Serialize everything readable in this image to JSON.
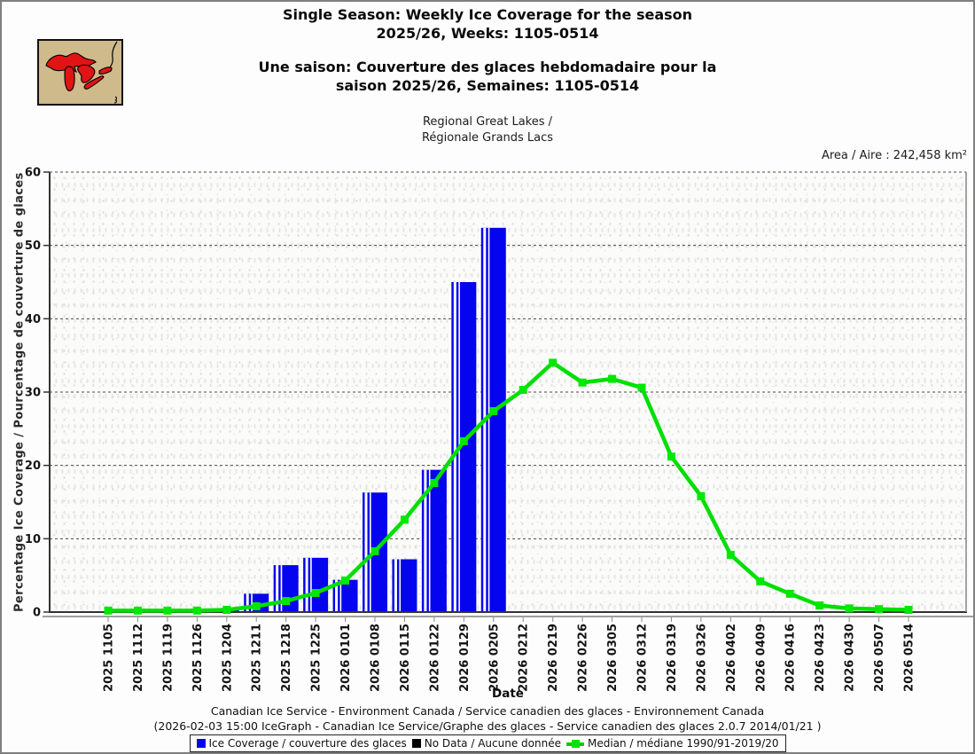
{
  "header": {
    "title_en_line1": "Single Season: Weekly Ice Coverage for the season",
    "title_en_line2": "2025/26, Weeks: 1105-0514",
    "title_fr_line1": "Une saison: Couverture des glaces hebdomadaire pour la",
    "title_fr_line2": "saison 2025/26, Semaines: 1105-0514",
    "region_en": "Regional Great Lakes /",
    "region_fr": "Régionale Grands Lacs",
    "area_label": "Area / Aire : 242,458 km²"
  },
  "icons": {
    "map": "great-lakes-map-icon",
    "ice_coverage_swatch": "blue-square-icon",
    "no_data_swatch": "black-square-icon",
    "median_swatch": "green-line-marker-icon"
  },
  "chart_data": {
    "type": "bar",
    "title": "",
    "xlabel": "Date",
    "ylabel": "Percentage Ice Coverage / Pourcentage de couverture de glaces",
    "ylim": [
      0,
      60
    ],
    "yticks": [
      0,
      10,
      20,
      30,
      40,
      50,
      60
    ],
    "grid": "horizontal-dashed",
    "legend_position": "bottom",
    "categories": [
      "2025 1105",
      "2025 1112",
      "2025 1119",
      "2025 1126",
      "2025 1204",
      "2025 1211",
      "2025 1218",
      "2025 1225",
      "2026 0101",
      "2026 0108",
      "2026 0115",
      "2026 0122",
      "2026 0129",
      "2026 0205",
      "2026 0212",
      "2026 0219",
      "2026 0226",
      "2026 0305",
      "2026 0312",
      "2026 0319",
      "2026 0326",
      "2026 0402",
      "2026 0409",
      "2026 0416",
      "2026 0423",
      "2026 0430",
      "2026 0507",
      "2026 0514"
    ],
    "series": [
      {
        "name": "Ice Coverage / couverture des glaces",
        "type": "bar",
        "color": "#0404ee",
        "values": [
          0,
          0,
          0,
          0,
          0.3,
          2.5,
          6.4,
          7.4,
          4.4,
          16.3,
          7.2,
          19.4,
          45.0,
          52.4,
          null,
          null,
          null,
          null,
          null,
          null,
          null,
          null,
          null,
          null,
          null,
          null,
          null,
          null
        ]
      },
      {
        "name": "Median / médiane 1990/91-2019/20",
        "type": "line",
        "color": "#00df00",
        "marker_color": "#00e800",
        "values": [
          0.2,
          0.2,
          0.2,
          0.2,
          0.3,
          0.8,
          1.5,
          2.6,
          4.3,
          8.3,
          12.6,
          17.6,
          23.3,
          27.4,
          30.3,
          34.0,
          31.3,
          31.8,
          30.6,
          21.2,
          15.8,
          7.8,
          4.2,
          2.5,
          0.9,
          0.5,
          0.4,
          0.3
        ]
      }
    ]
  },
  "footer": {
    "line1": "Canadian Ice Service - Environment Canada / Service canadien des glaces - Environnement Canada",
    "line2": "(2026-02-03 15:00 IceGraph - Canadian Ice Service/Graphe des glaces - Service canadien des glaces 2.0.7 2014/01/21 )"
  },
  "legend": {
    "items": [
      {
        "swatch": "blue-square",
        "color": "#0404ee",
        "label": "Ice Coverage / couverture des glaces"
      },
      {
        "swatch": "black-square",
        "color": "#000000",
        "label": "No Data / Aucune donnée"
      },
      {
        "swatch": "green-line-marker",
        "color": "#00df00",
        "label": "Median / médiane 1990/91-2019/20"
      }
    ]
  }
}
